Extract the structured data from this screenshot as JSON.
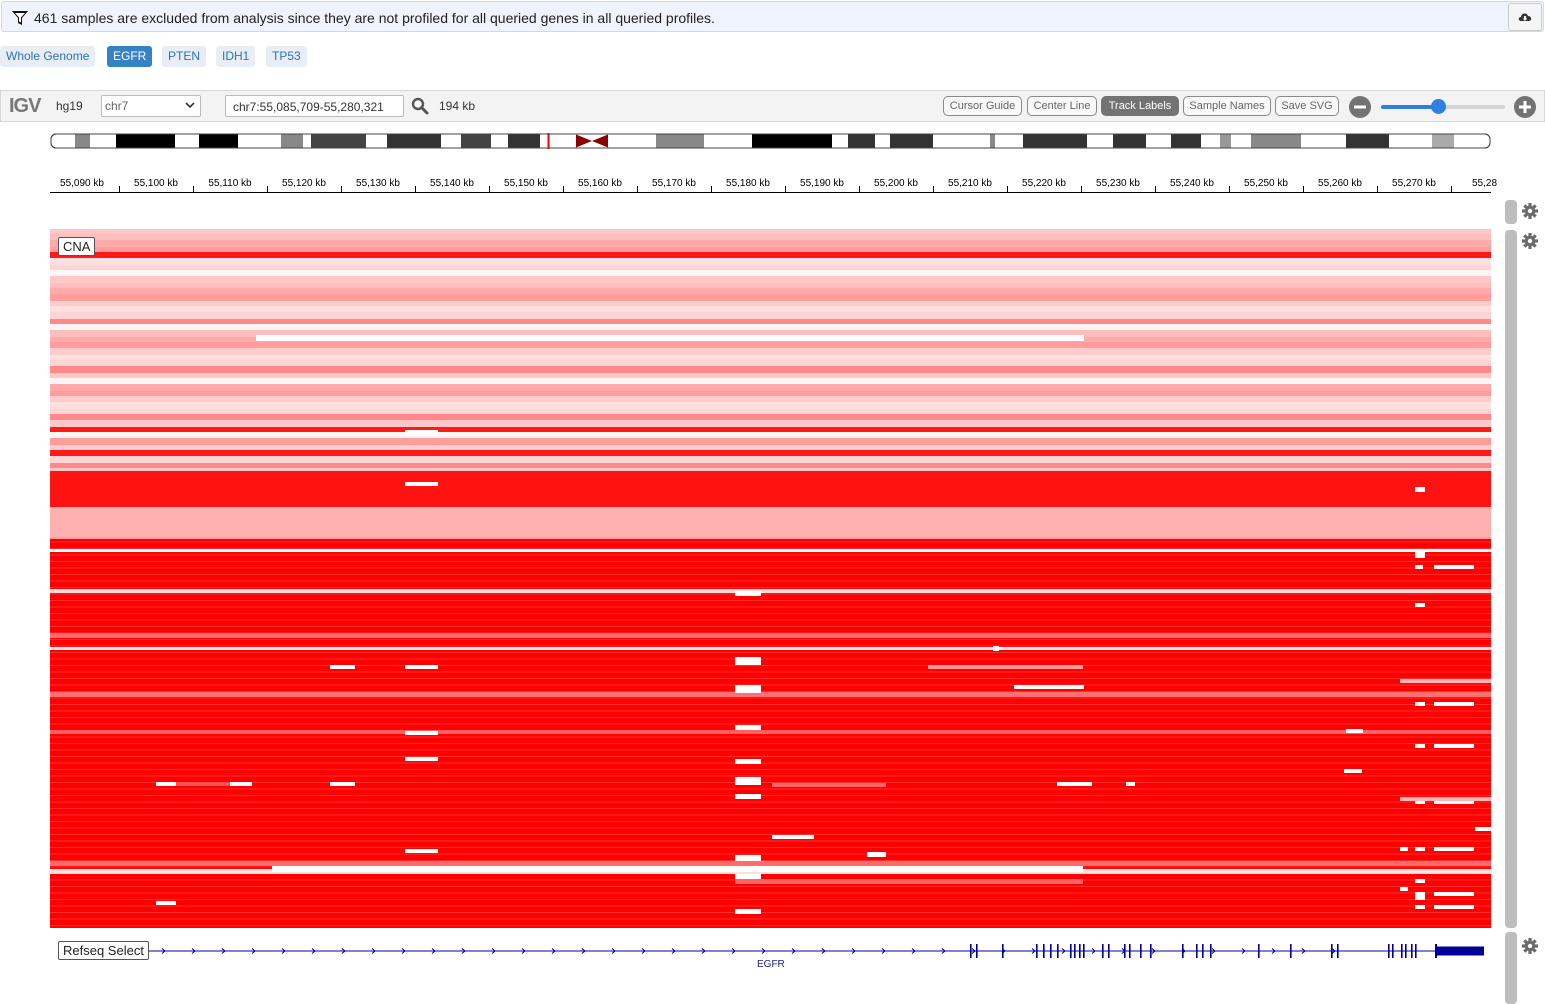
{
  "notice": {
    "message": "461 samples are excluded from analysis since they are not profiled for all queried genes in all queried profiles."
  },
  "tabs": [
    "Whole Genome",
    "EGFR",
    "PTEN",
    "IDH1",
    "TP53"
  ],
  "active_tab": "EGFR",
  "igv": {
    "logo": "IGV",
    "genome": "hg19",
    "chromosome": "chr7",
    "locus": "chr7:55,085,709-55,280,321",
    "window_width": "194 kb",
    "buttons": {
      "cursor_guide": "Cursor Guide",
      "center_line": "Center Line",
      "track_labels": "Track Labels",
      "sample_names": "Sample Names",
      "save_svg": "Save SVG"
    },
    "track_labels_on": true,
    "zoom_level": 0.46
  },
  "ruler": {
    "ticks": [
      "55,090 kb",
      "55,100 kb",
      "55,110 kb",
      "55,120 kb",
      "55,130 kb",
      "55,140 kb",
      "55,150 kb",
      "55,160 kb",
      "55,170 kb",
      "55,180 kb",
      "55,190 kb",
      "55,200 kb",
      "55,210 kb",
      "55,220 kb",
      "55,230 kb",
      "55,240 kb",
      "55,250 kb",
      "55,260 kb",
      "55,270 kb",
      "55,28"
    ]
  },
  "tracks": {
    "cna_label": "CNA",
    "refseq_label": "Refseq Select",
    "gene": "EGFR"
  },
  "colors": {
    "amplification": "#ff0000",
    "gain_light": "#ffb3b3",
    "gene": "#000099",
    "accent": "#3582c4"
  },
  "icons": {
    "filter": "filter-icon",
    "download": "cloud-download-icon",
    "search": "search-icon",
    "zoom_out": "minus-circle-icon",
    "zoom_in": "plus-circle-icon",
    "settings": "gear-icon"
  }
}
